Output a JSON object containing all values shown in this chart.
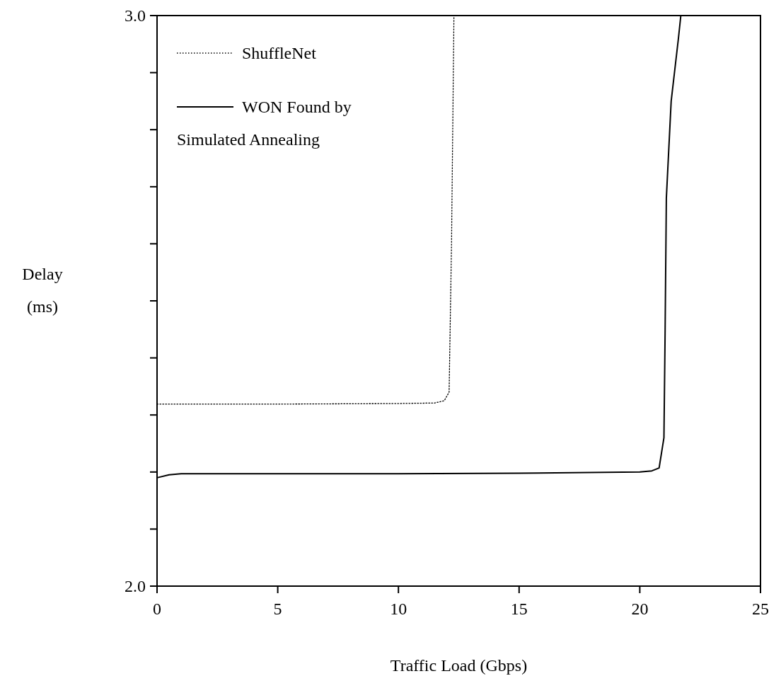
{
  "chart_data": {
    "type": "line",
    "xlabel": "Traffic Load (Gbps)",
    "ylabel": "Delay (ms)",
    "xlim": [
      0,
      25
    ],
    "ylim": [
      2.0,
      3.0
    ],
    "xticks": [
      0,
      5,
      10,
      15,
      20,
      25
    ],
    "yticks": [
      {
        "value": 2.0,
        "label": "2.0"
      },
      {
        "value": 2.1,
        "label": null
      },
      {
        "value": 2.2,
        "label": null
      },
      {
        "value": 2.3,
        "label": null
      },
      {
        "value": 2.4,
        "label": null
      },
      {
        "value": 2.5,
        "label": null
      },
      {
        "value": 2.6,
        "label": null
      },
      {
        "value": 2.7,
        "label": null
      },
      {
        "value": 2.8,
        "label": null
      },
      {
        "value": 2.9,
        "label": null
      },
      {
        "value": 3.0,
        "label": "3.0"
      }
    ],
    "legend": "top left",
    "grid": false,
    "series": [
      {
        "name": "ShuffleNet",
        "color": "#000000",
        "line_style": "dotted",
        "x": [
          0,
          5,
          10,
          11.5,
          11.9,
          12.1,
          12.2,
          12.3
        ],
        "values": [
          2.319,
          2.319,
          2.32,
          2.321,
          2.325,
          2.34,
          2.6,
          3.0
        ]
      },
      {
        "name": "WON Found by Simulated Annealing",
        "color": "#000000",
        "line_style": "solid",
        "x": [
          0,
          0.5,
          1,
          5,
          10,
          15,
          20,
          20.5,
          20.8,
          21.0,
          21.05,
          21.1,
          21.3,
          21.6,
          21.7
        ],
        "values": [
          2.19,
          2.195,
          2.197,
          2.197,
          2.197,
          2.198,
          2.2,
          2.202,
          2.207,
          2.26,
          2.45,
          2.68,
          2.85,
          2.96,
          3.0
        ]
      }
    ]
  }
}
